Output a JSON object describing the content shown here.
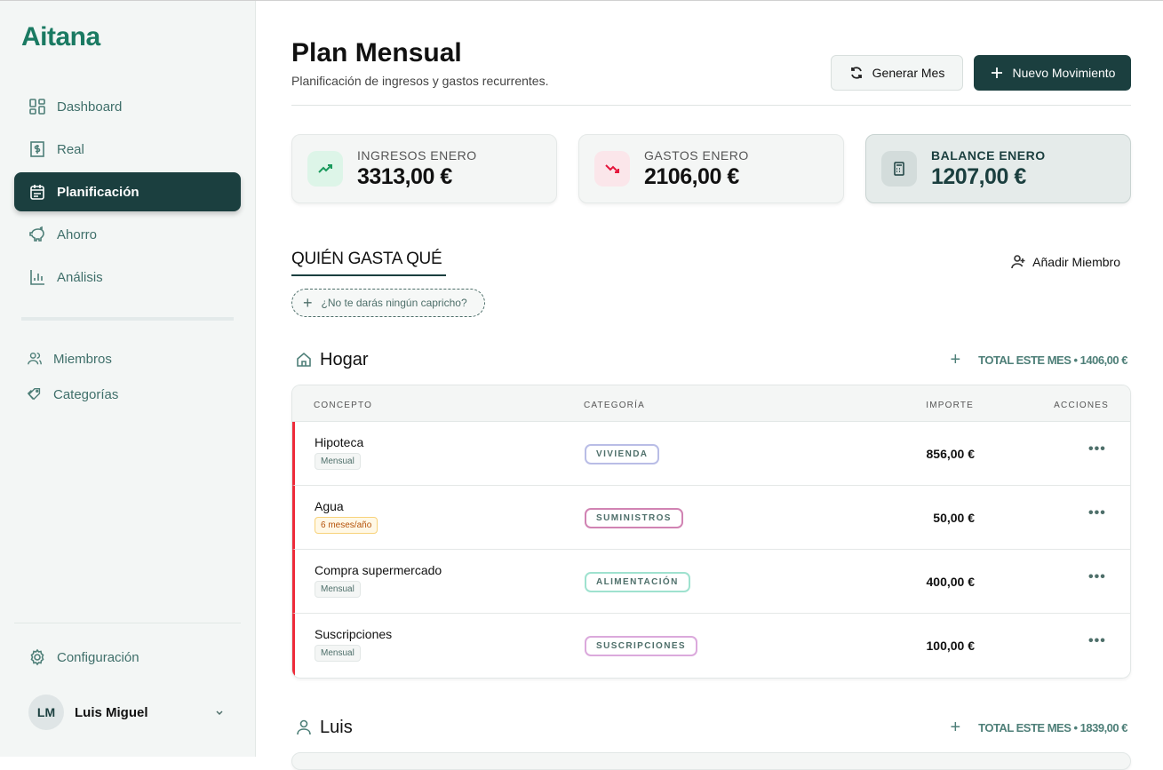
{
  "app": {
    "logo": "Aitana"
  },
  "sidebar": {
    "items": [
      {
        "label": "Dashboard",
        "icon": "dashboard-icon"
      },
      {
        "label": "Real",
        "icon": "receipt-dollar-icon"
      },
      {
        "label": "Planificación",
        "icon": "calendar-icon",
        "active": true
      },
      {
        "label": "Ahorro",
        "icon": "piggy-bank-icon"
      },
      {
        "label": "Análisis",
        "icon": "bar-chart-icon"
      }
    ],
    "secondary": [
      {
        "label": "Miembros",
        "icon": "users-icon"
      },
      {
        "label": "Categorías",
        "icon": "tag-icon"
      }
    ],
    "settings": "Configuración",
    "user": {
      "initials": "LM",
      "name": "Luis Miguel"
    }
  },
  "header": {
    "title": "Plan Mensual",
    "subtitle": "Planificación de ingresos y gastos recurrentes.",
    "generate": "Generar Mes",
    "new": "Nuevo Movimiento"
  },
  "cards": [
    {
      "label": "INGRESOS ENERO",
      "value": "3313,00 €",
      "color": "#1a9a5c"
    },
    {
      "label": "GASTOS ENERO",
      "value": "2106,00 €",
      "color": "#e5163c"
    },
    {
      "label": "BALANCE ENERO",
      "value": "1207,00 €",
      "color": "#1b3f3f"
    }
  ],
  "section": {
    "title": "QUIÉN GASTA QUÉ",
    "add_member": "Añadir Miembro",
    "whim": "¿No te darás ningún capricho?"
  },
  "table_headers": {
    "concept": "CONCEPTO",
    "category": "CATEGORÍA",
    "amount": "IMPORTE",
    "actions": "ACCIONES"
  },
  "groups": [
    {
      "name": "Hogar",
      "total": "TOTAL ESTE MES • 1406,00 €",
      "rows": [
        {
          "concept": "Hipoteca",
          "freq": "Mensual",
          "category": "VIVIENDA",
          "cat_color": "#b9bde6",
          "amount": "856,00 €"
        },
        {
          "concept": "Agua",
          "freq": "6 meses/año",
          "category": "SUMINISTROS",
          "cat_color": "#d183b3",
          "amount": "50,00 €"
        },
        {
          "concept": "Compra supermercado",
          "freq": "Mensual",
          "category": "ALIMENTACIÓN",
          "cat_color": "#9fe2cf",
          "amount": "400,00 €"
        },
        {
          "concept": "Suscripciones",
          "freq": "Mensual",
          "category": "SUSCRIPCIONES",
          "cat_color": "#dba9dc",
          "amount": "100,00 €"
        }
      ]
    },
    {
      "name": "Luis",
      "total": "TOTAL ESTE MES • 1839,00 €",
      "rows": []
    }
  ]
}
